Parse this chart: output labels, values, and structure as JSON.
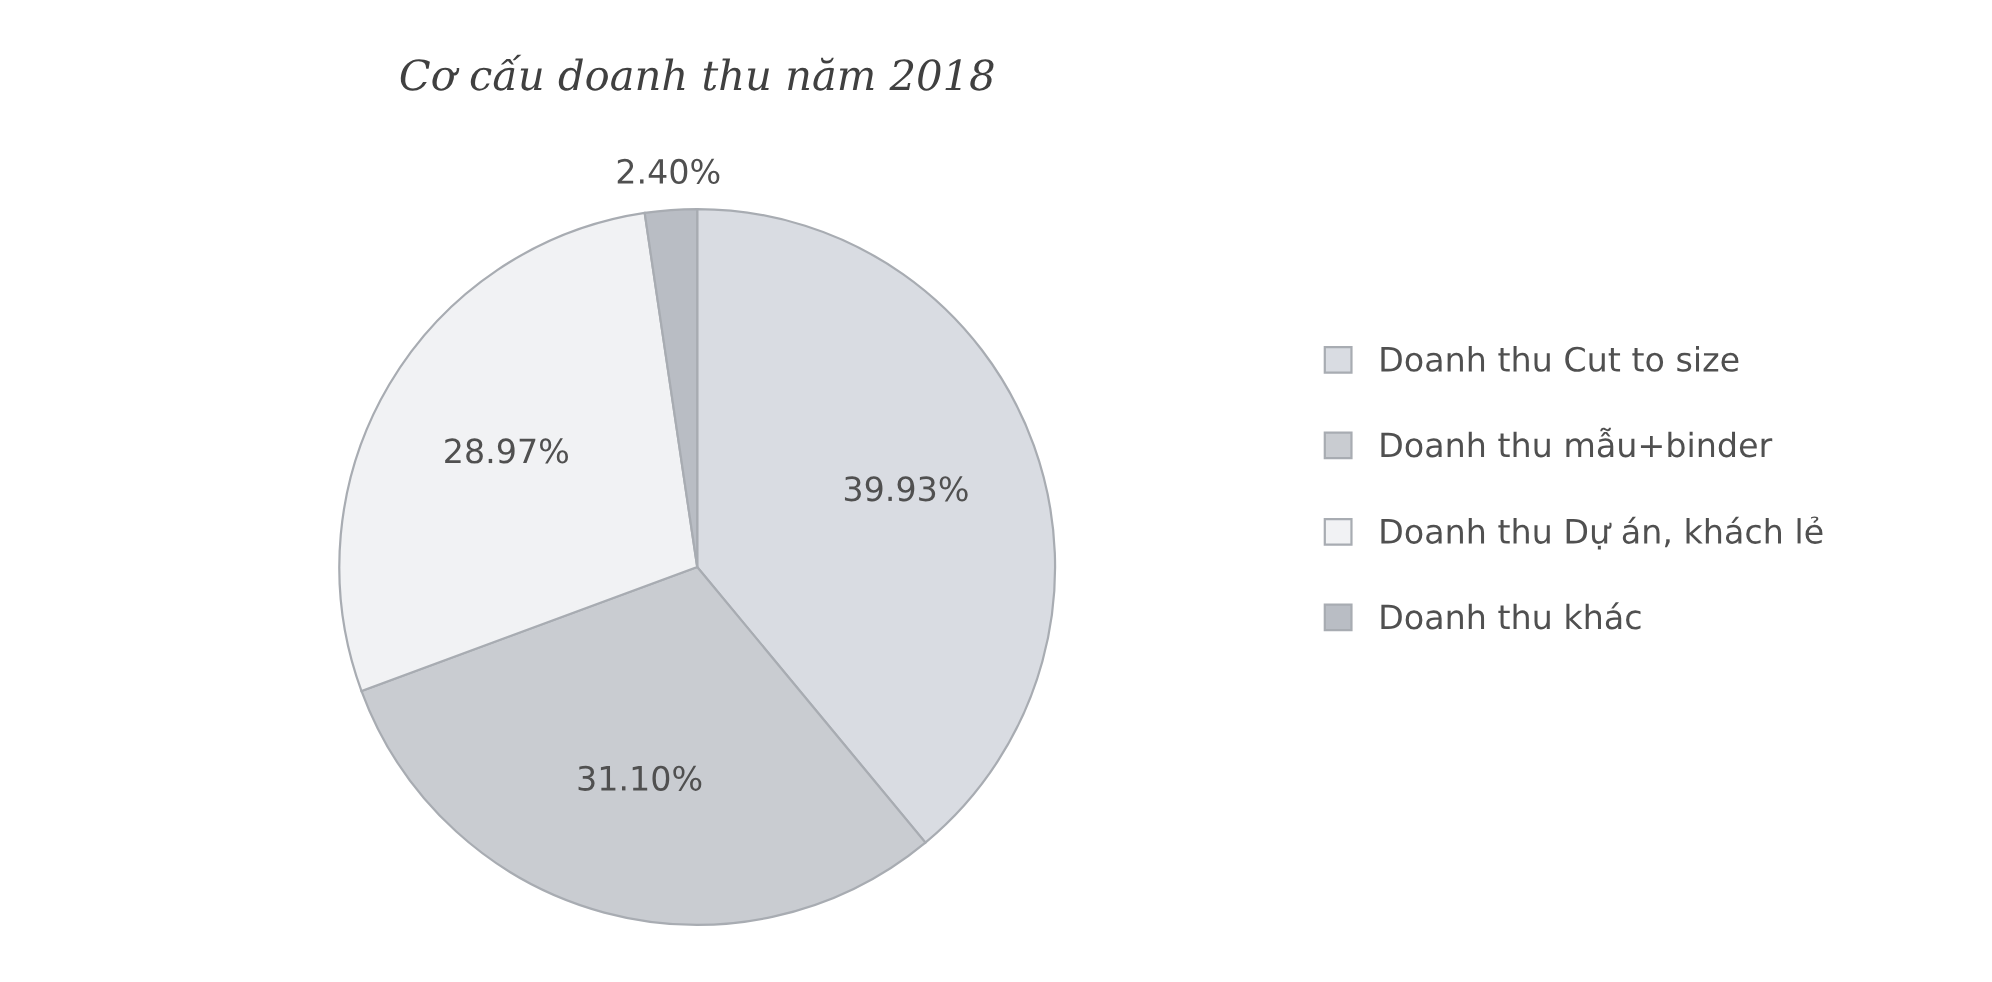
{
  "chart_data": {
    "type": "pie",
    "title": "Cơ cấu doanh thu năm 2018",
    "categories": [
      "Doanh thu Cut to size",
      "Doanh thu mẫu+binder",
      "Doanh thu Dự án, khách lẻ",
      "Doanh thu khác"
    ],
    "values": [
      39.93,
      31.1,
      28.97,
      2.4
    ],
    "value_labels": [
      "39.93%",
      "31.10%",
      "28.97%",
      "2.40%"
    ],
    "colors": [
      "#d9dce2",
      "#c9ccd1",
      "#f1f2f4",
      "#b9bdc4"
    ],
    "legend": "right"
  }
}
